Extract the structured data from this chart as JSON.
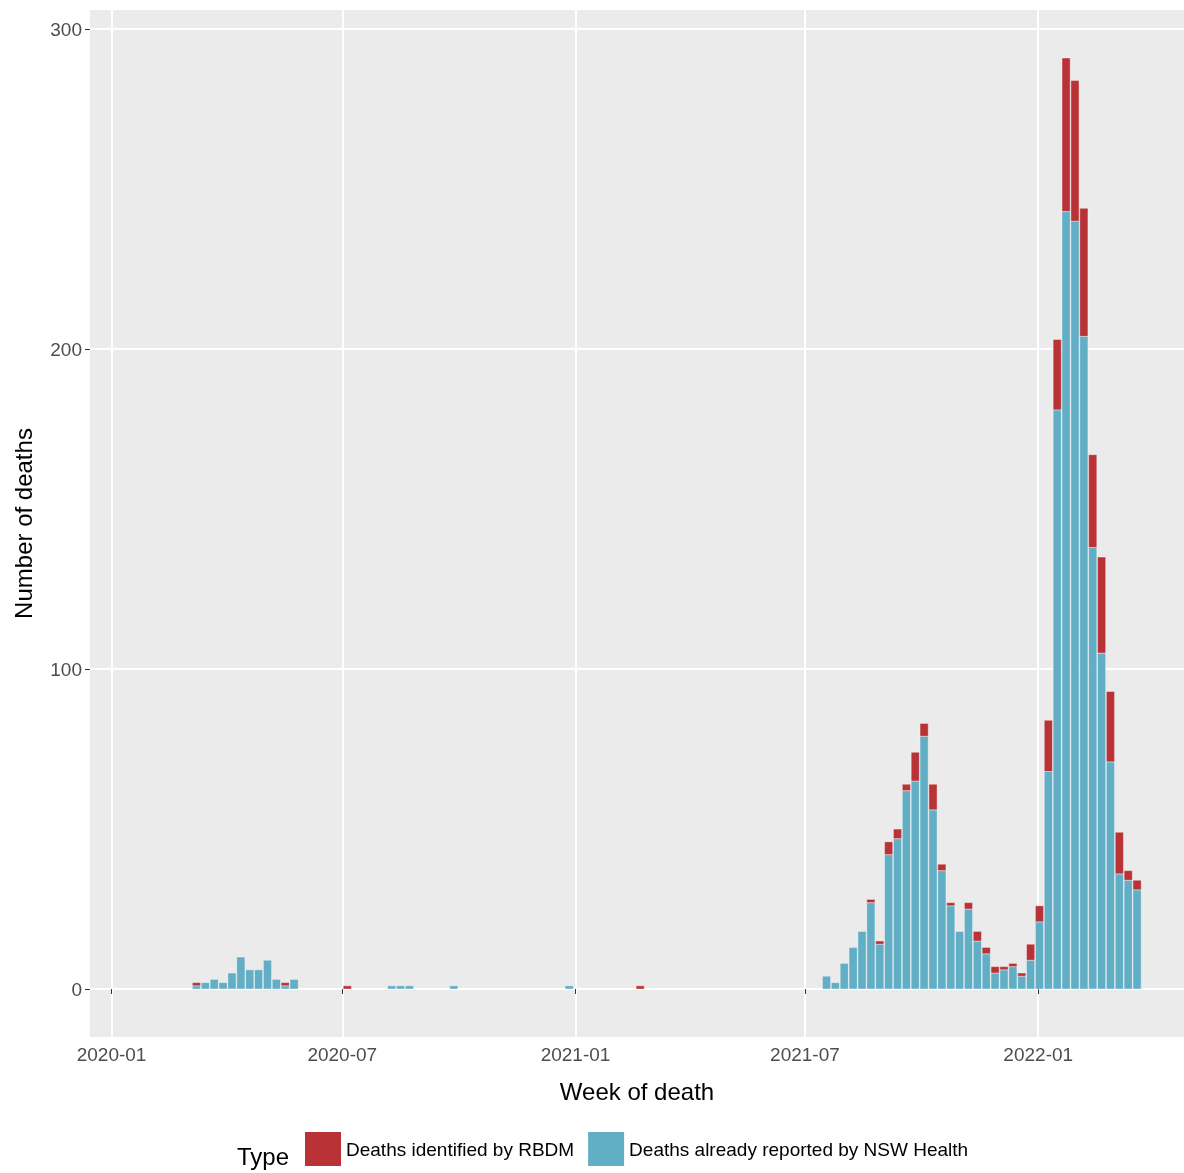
{
  "chart_data": {
    "type": "bar",
    "stacked": true,
    "xlabel": "Week of death",
    "ylabel": "Number of deaths",
    "legend_title": "Type",
    "legend": "bottom",
    "grid": true,
    "x": [
      "2020-03-08",
      "2020-03-15",
      "2020-03-22",
      "2020-03-29",
      "2020-04-05",
      "2020-04-12",
      "2020-04-19",
      "2020-04-26",
      "2020-05-03",
      "2020-05-10",
      "2020-05-17",
      "2020-05-24",
      "2020-07-05",
      "2020-08-09",
      "2020-08-16",
      "2020-08-23",
      "2020-09-27",
      "2020-12-27",
      "2021-02-21",
      "2021-07-18",
      "2021-07-25",
      "2021-08-01",
      "2021-08-08",
      "2021-08-15",
      "2021-08-22",
      "2021-08-29",
      "2021-09-05",
      "2021-09-12",
      "2021-09-19",
      "2021-09-26",
      "2021-10-03",
      "2021-10-10",
      "2021-10-17",
      "2021-10-24",
      "2021-10-31",
      "2021-11-07",
      "2021-11-14",
      "2021-11-21",
      "2021-11-28",
      "2021-12-05",
      "2021-12-12",
      "2021-12-19",
      "2021-12-26",
      "2022-01-02",
      "2022-01-09",
      "2022-01-16",
      "2022-01-23",
      "2022-01-30",
      "2022-02-06",
      "2022-02-13",
      "2022-02-20",
      "2022-02-27",
      "2022-03-06",
      "2022-03-13",
      "2022-03-20"
    ],
    "series": [
      {
        "name": "Deaths already reported by NSW Health",
        "color": "#62aec5",
        "values": [
          1,
          2,
          3,
          2,
          5,
          10,
          6,
          6,
          9,
          3,
          1,
          3,
          0,
          1,
          1,
          1,
          1,
          1,
          0,
          4,
          2,
          8,
          13,
          18,
          27,
          14,
          42,
          47,
          62,
          65,
          79,
          56,
          37,
          26,
          18,
          25,
          15,
          11,
          5,
          6,
          7,
          4,
          9,
          21,
          68,
          181,
          243,
          240,
          204,
          138,
          105,
          71,
          36,
          34,
          31
        ]
      },
      {
        "name": "Deaths identified by RBDM",
        "color": "#b83236",
        "values": [
          1,
          0,
          0,
          0,
          0,
          0,
          0,
          0,
          0,
          0,
          1,
          0,
          1,
          0,
          0,
          0,
          0,
          0,
          1,
          0,
          0,
          0,
          0,
          0,
          1,
          1,
          4,
          3,
          2,
          9,
          4,
          8,
          2,
          1,
          0,
          2,
          3,
          2,
          2,
          1,
          1,
          1,
          5,
          5,
          16,
          22,
          48,
          44,
          40,
          29,
          30,
          22,
          13,
          3,
          3
        ]
      }
    ],
    "xlim": [
      "2019-12-15",
      "2022-04-26"
    ],
    "xticks": [
      {
        "value": "2020-01-01",
        "label": "2020-01"
      },
      {
        "value": "2020-07-01",
        "label": "2020-07"
      },
      {
        "value": "2021-01-01",
        "label": "2021-01"
      },
      {
        "value": "2021-07-01",
        "label": "2021-07"
      },
      {
        "value": "2022-01-01",
        "label": "2022-01"
      }
    ],
    "ylim": [
      -15,
      306
    ],
    "yticks": [
      0,
      100,
      200,
      300
    ]
  }
}
